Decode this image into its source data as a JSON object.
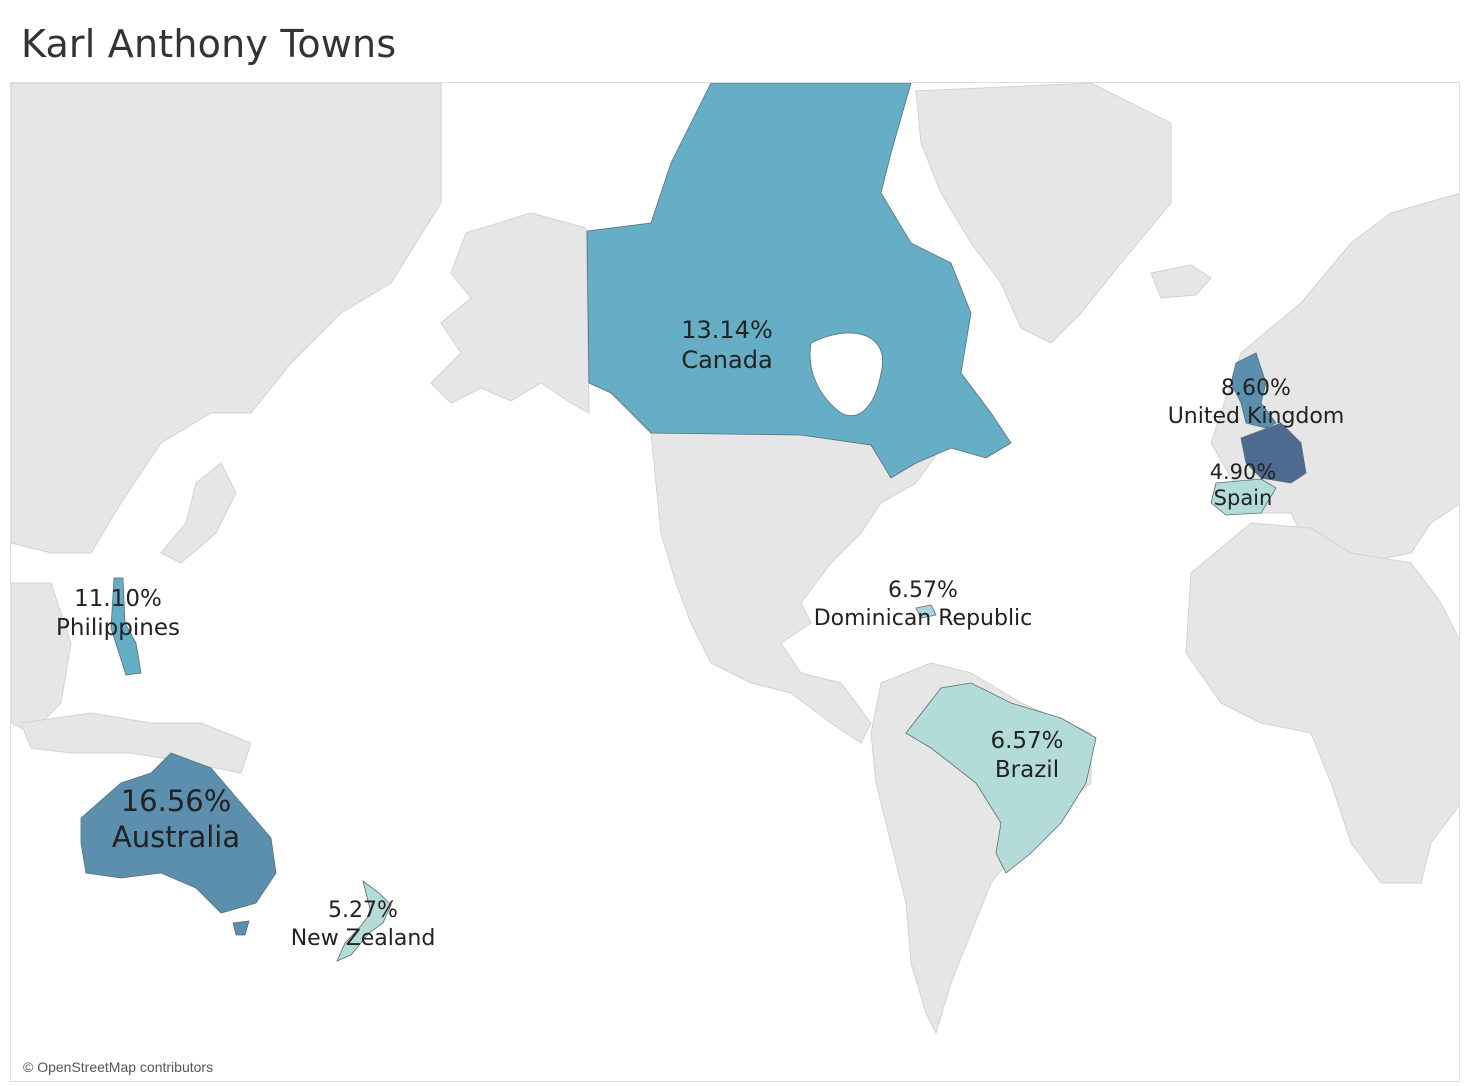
{
  "title": "Karl Anthony Towns",
  "attribution": "© OpenStreetMap contributors",
  "colors": {
    "scale_lightest": "#b3dcd9",
    "scale_light": "#a9d6d8",
    "scale_mid": "#66aec5",
    "scale_dark": "#5b8fad",
    "scale_darkest": "#4d6b91",
    "land": "#e6e6e6",
    "ocean": "#ffffff"
  },
  "regions": [
    {
      "id": "canada",
      "pct": "13.14%",
      "name": "Canada",
      "value": 13.14
    },
    {
      "id": "united-kingdom",
      "pct": "8.60%",
      "name": "United Kingdom",
      "value": 8.6
    },
    {
      "id": "spain",
      "pct": "4.90%",
      "name": "Spain",
      "value": 4.9
    },
    {
      "id": "philippines",
      "pct": "11.10%",
      "name": "Philippines",
      "value": 11.1
    },
    {
      "id": "dominican-republic",
      "pct": "6.57%",
      "name": "Dominican Republic",
      "value": 6.57
    },
    {
      "id": "brazil",
      "pct": "6.57%",
      "name": "Brazil",
      "value": 6.57
    },
    {
      "id": "australia",
      "pct": "16.56%",
      "name": "Australia",
      "value": 16.56
    },
    {
      "id": "new-zealand",
      "pct": "5.27%",
      "name": "New Zealand",
      "value": 5.27
    }
  ]
}
